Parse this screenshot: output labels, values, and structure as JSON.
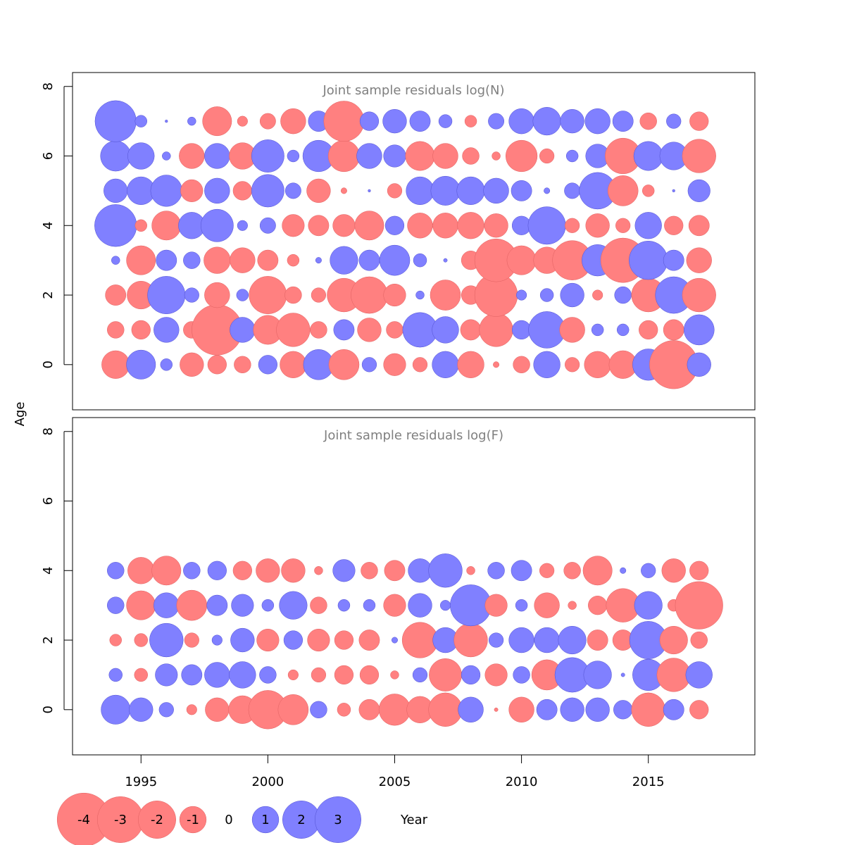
{
  "chart_data": {
    "type": "scatter",
    "ylabel": "Age",
    "xlabel": "Year",
    "xlim": [
      1992.3,
      2019.2
    ],
    "years": [
      1994,
      1995,
      1996,
      1997,
      1998,
      1999,
      2000,
      2001,
      2002,
      2003,
      2004,
      2005,
      2006,
      2007,
      2008,
      2009,
      2010,
      2011,
      2012,
      2013,
      2014,
      2015,
      2016,
      2017
    ],
    "x_ticks": [
      1995,
      2000,
      2005,
      2010,
      2015
    ],
    "colors": {
      "positive": "#8080ff",
      "negative": "#ff8080"
    },
    "panels": [
      {
        "title": "Joint sample residuals log(N)",
        "ylim": [
          -1.3,
          8.4
        ],
        "y_ticks": [
          0,
          2,
          4,
          6,
          8
        ],
        "ages": [
          0,
          1,
          2,
          3,
          4,
          5,
          6,
          7
        ],
        "residuals": [
          [
            -1.1,
            1.2,
            0.2,
            -0.8,
            -0.5,
            -0.4,
            0.5,
            -1.0,
            1.3,
            -1.3,
            0.3,
            -0.7,
            -0.3,
            1.0,
            -1.0,
            -0.05,
            -0.4,
            1.0,
            -0.3,
            -1.0,
            -1.1,
            1.4,
            -3.3,
            0.8
          ],
          [
            -0.4,
            -0.5,
            0.9,
            -0.4,
            -3.6,
            0.9,
            -1.2,
            -1.6,
            -0.4,
            0.6,
            -0.8,
            -0.4,
            1.7,
            1.0,
            -0.6,
            -1.6,
            0.5,
            1.9,
            -0.9,
            0.2,
            0.2,
            -0.5,
            -0.6,
            1.3
          ],
          [
            -0.6,
            -1.1,
            2.0,
            0.3,
            -0.9,
            0.2,
            -2.0,
            -0.4,
            -0.3,
            -1.6,
            -1.9,
            -0.7,
            0.1,
            -1.3,
            -0.5,
            -2.6,
            0.15,
            0.25,
            0.8,
            -0.15,
            0.4,
            -1.6,
            1.9,
            -1.6
          ],
          [
            0.1,
            -1.2,
            0.6,
            0.4,
            -1.0,
            -0.9,
            -0.6,
            -0.2,
            0.05,
            1.1,
            0.6,
            1.3,
            0.25,
            0.02,
            -0.5,
            -2.6,
            -1.2,
            -1.0,
            -2.2,
            1.4,
            -2.8,
            2.1,
            0.6,
            -0.9
          ],
          [
            2.5,
            -0.2,
            -1.2,
            1.0,
            1.5,
            0.15,
            0.35,
            -0.7,
            -0.6,
            -0.7,
            -1.2,
            0.5,
            -0.9,
            -0.9,
            -1.0,
            -0.8,
            0.5,
            2.0,
            -0.3,
            -0.8,
            -0.3,
            1.0,
            -0.5,
            -0.6
          ],
          [
            0.8,
            1.1,
            1.4,
            -0.7,
            0.9,
            -0.5,
            1.5,
            0.35,
            -0.8,
            -0.05,
            0.01,
            -0.3,
            1.1,
            1.2,
            1.1,
            0.9,
            0.6,
            0.05,
            0.35,
            1.9,
            -1.3,
            -0.2,
            0.01,
            0.7
          ],
          [
            1.3,
            1.0,
            0.1,
            -0.9,
            0.9,
            -1.0,
            1.5,
            0.2,
            1.4,
            -1.4,
            0.9,
            0.7,
            -1.2,
            -0.9,
            -0.4,
            -0.1,
            -1.4,
            -0.3,
            0.2,
            0.8,
            -1.8,
            1.2,
            1.1,
            -1.6
          ],
          [
            2.4,
            0.2,
            0.01,
            0.1,
            -1.2,
            -0.15,
            -0.35,
            -0.9,
            0.6,
            -2.3,
            0.5,
            0.8,
            0.6,
            0.25,
            -0.2,
            0.35,
            0.9,
            1.1,
            0.8,
            0.9,
            0.6,
            -0.4,
            0.3,
            -0.5
          ]
        ]
      },
      {
        "title": "Joint sample residuals log(F)",
        "ylim": [
          -1.3,
          8.4
        ],
        "y_ticks": [
          0,
          2,
          4,
          6,
          8
        ],
        "ages": [
          0,
          1,
          2,
          3,
          4
        ],
        "residuals": [
          [
            1.2,
            0.8,
            0.3,
            -0.15,
            -0.8,
            -1.1,
            -2.1,
            -1.3,
            0.4,
            -0.25,
            -0.6,
            -1.4,
            -1.0,
            -1.6,
            0.9,
            -0.02,
            -0.9,
            0.6,
            0.8,
            0.8,
            0.5,
            -1.6,
            0.6,
            -0.5
          ],
          [
            0.25,
            -0.25,
            0.7,
            0.6,
            0.9,
            1.0,
            0.4,
            -0.15,
            -0.3,
            -0.5,
            -0.5,
            -0.1,
            0.3,
            -1.5,
            0.5,
            -0.7,
            0.4,
            -1.3,
            1.7,
            1.1,
            0.02,
            1.4,
            -1.6,
            1.0
          ],
          [
            -0.2,
            -0.25,
            1.6,
            -0.3,
            0.15,
            0.8,
            -0.7,
            0.5,
            -0.7,
            -0.5,
            -0.6,
            0.05,
            -1.8,
            0.9,
            -1.6,
            0.3,
            0.9,
            0.9,
            1.1,
            -0.6,
            -0.6,
            2.0,
            -1.1,
            -0.4
          ],
          [
            0.4,
            -1.2,
            0.9,
            -1.3,
            0.6,
            0.7,
            0.2,
            1.1,
            -0.4,
            0.2,
            0.2,
            -0.7,
            0.8,
            0.15,
            2.4,
            -0.7,
            0.2,
            -0.9,
            -0.1,
            -0.5,
            -1.6,
            1.1,
            -0.2,
            -3.2
          ],
          [
            0.4,
            -1.0,
            -1.2,
            0.4,
            0.5,
            -0.5,
            -0.8,
            -0.8,
            -0.1,
            0.7,
            -0.4,
            -0.6,
            0.8,
            1.6,
            -0.1,
            0.4,
            0.6,
            -0.3,
            -0.4,
            -1.2,
            0.05,
            0.3,
            -0.8,
            -0.5
          ]
        ]
      }
    ],
    "legend": {
      "values": [
        -4,
        -3,
        -2,
        -1,
        0,
        1,
        2,
        3
      ],
      "labels": [
        "-4",
        "-3",
        "-2",
        "-1",
        "0",
        "1",
        "2",
        "3"
      ]
    }
  }
}
